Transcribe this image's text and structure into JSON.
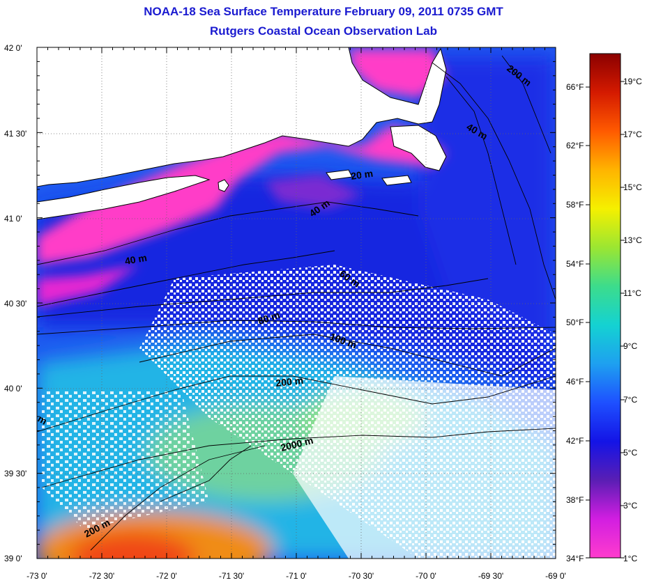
{
  "title": "NOAA-18 Sea Surface Temperature February 09, 2011 0735 GMT",
  "subtitle": "Rutgers Coastal Ocean Observation Lab",
  "axes": {
    "latitude_ticks": [
      "42 0'",
      "41 30'",
      "41 0'",
      "40 30'",
      "40 0'",
      "39 30'",
      "39 0'"
    ],
    "longitude_ticks": [
      "-73 0'",
      "-72 30'",
      "-72 0'",
      "-71 30'",
      "-71 0'",
      "-70 30'",
      "-70 0'",
      "-69 30'",
      "-69 0'"
    ],
    "lat_range": [
      39.0,
      42.0
    ],
    "lon_range": [
      -73.0,
      -69.0
    ],
    "grid": "dotted"
  },
  "colorbar": {
    "fahrenheit_labels": [
      "66°F",
      "62°F",
      "58°F",
      "54°F",
      "50°F",
      "46°F",
      "42°F",
      "38°F",
      "34°F"
    ],
    "celsius_labels": [
      "19°C",
      "17°C",
      "15°C",
      "13°C",
      "11°C",
      "9°C",
      "7°C",
      "5°C",
      "3°C",
      "1°C"
    ],
    "range_celsius": [
      1,
      20
    ],
    "stops": [
      "#8b0000",
      "#d41a00",
      "#ff5a00",
      "#ffb400",
      "#f5f000",
      "#9be632",
      "#3cdc8c",
      "#14d2d2",
      "#1ea0f0",
      "#1e50ff",
      "#1414e6",
      "#5a1eb4",
      "#d21ee1",
      "#ff3ccd"
    ]
  },
  "contours": [
    "200 m",
    "40 m",
    "20 m",
    "40 m",
    "40 m",
    "60 m",
    "80 m",
    "100 m",
    "200 m",
    "2000 m",
    "200 m",
    "m"
  ],
  "colors": {
    "title": "#1a1ad0",
    "land": "#ffffff",
    "no_data": "#ffffff"
  }
}
